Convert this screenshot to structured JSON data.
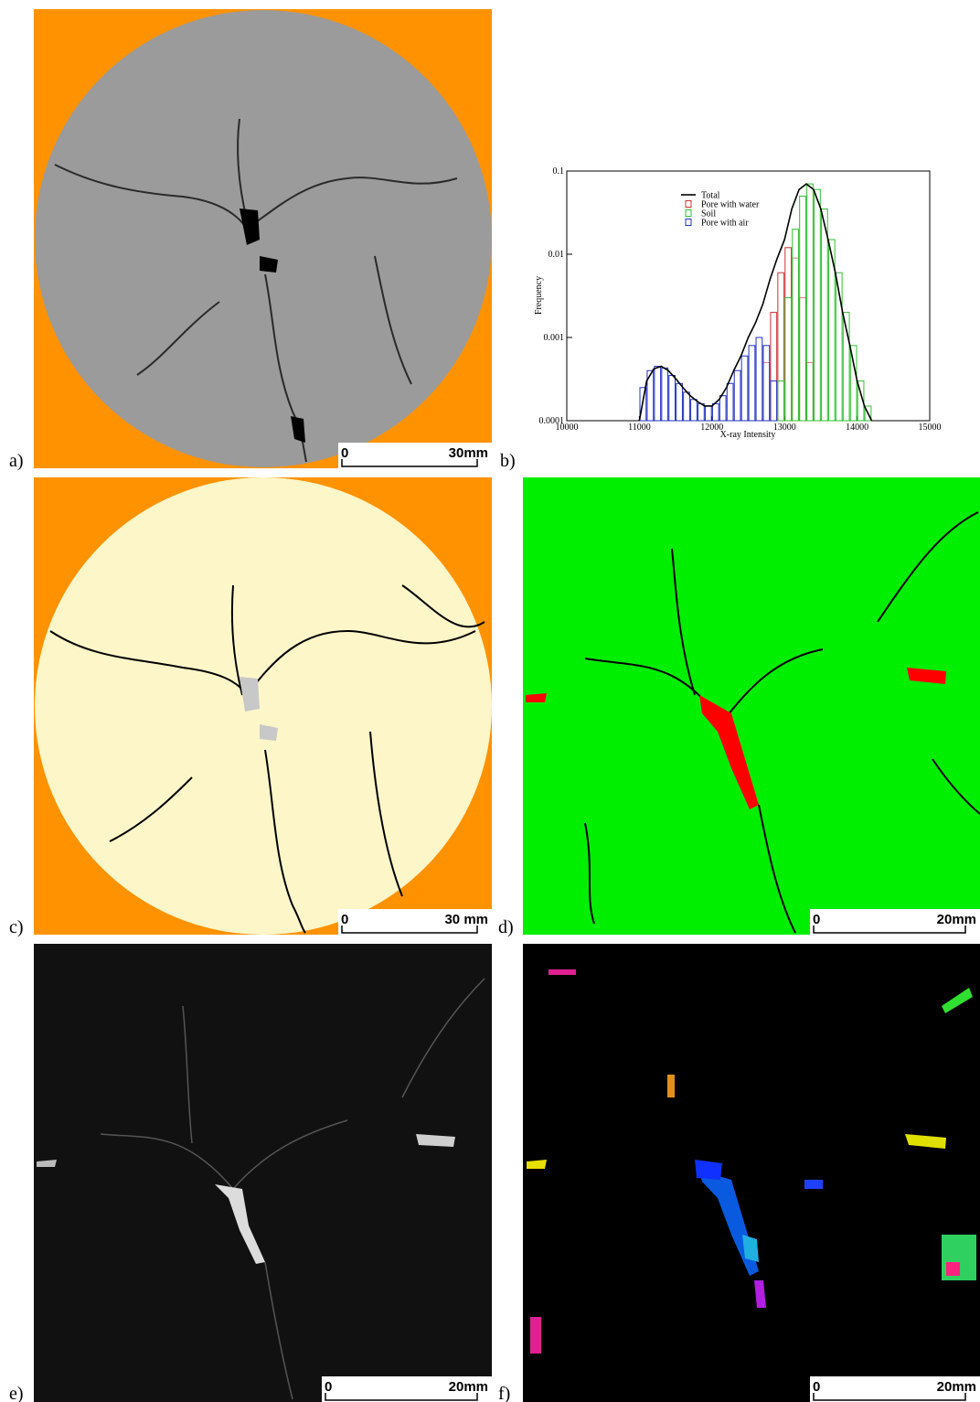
{
  "chart_data": {
    "type": "histogram",
    "x_label": "X-ray Intensity",
    "y_label": "Frequency",
    "xlim": [
      10000,
      15000
    ],
    "xticks": [
      10000,
      11000,
      12000,
      13000,
      14000,
      15000
    ],
    "ylim": [
      0.0001,
      0.1
    ],
    "yticks": [
      0.0001,
      0.001,
      0.01,
      0.1
    ],
    "log_y": true,
    "legend": "upper center",
    "bins": [
      11000,
      11100,
      11200,
      11300,
      11400,
      11500,
      11600,
      11700,
      11800,
      11900,
      12000,
      12100,
      12200,
      12300,
      12400,
      12500,
      12600,
      12700,
      12800,
      12900,
      13000,
      13100,
      13200,
      13300,
      13400,
      13500,
      13600,
      13700,
      13800,
      13900,
      14000,
      14100,
      14200
    ],
    "series": [
      {
        "name": "Total",
        "type": "line",
        "color": "#000000",
        "x": [
          11000,
          11100,
          11200,
          11300,
          11400,
          11500,
          11600,
          11700,
          11800,
          11900,
          12000,
          12100,
          12200,
          12300,
          12400,
          12500,
          12600,
          12700,
          12800,
          12900,
          13000,
          13100,
          13200,
          13300,
          13400,
          13500,
          13600,
          13700,
          13800,
          13900,
          14000,
          14100,
          14200
        ],
        "values": [
          0.0001,
          0.0003,
          0.00042,
          0.00045,
          0.0004,
          0.00032,
          0.00025,
          0.0002,
          0.00017,
          0.00015,
          0.00015,
          0.00018,
          0.00025,
          0.0004,
          0.0006,
          0.001,
          0.0015,
          0.0025,
          0.005,
          0.009,
          0.015,
          0.035,
          0.06,
          0.07,
          0.06,
          0.035,
          0.015,
          0.006,
          0.002,
          0.0008,
          0.0003,
          0.00015,
          0.0001
        ]
      },
      {
        "name": "Pore with water",
        "color": "#d03030",
        "values": [
          null,
          null,
          null,
          null,
          null,
          null,
          null,
          null,
          null,
          null,
          null,
          null,
          null,
          null,
          null,
          null,
          null,
          0.0005,
          0.002,
          0.006,
          0.012,
          0.009,
          0.003,
          0.0005,
          null,
          null,
          null,
          null,
          null,
          null,
          null,
          null
        ]
      },
      {
        "name": "Soil",
        "color": "#30c030",
        "values": [
          null,
          null,
          null,
          null,
          null,
          null,
          null,
          null,
          null,
          null,
          null,
          null,
          null,
          null,
          null,
          null,
          null,
          null,
          null,
          0.0003,
          0.003,
          0.02,
          0.05,
          0.07,
          0.06,
          0.035,
          0.015,
          0.006,
          0.002,
          0.0008,
          0.0003,
          0.00015
        ]
      },
      {
        "name": "Pore with air",
        "color": "#2030c0",
        "values": [
          0.00025,
          0.0004,
          0.00045,
          0.00043,
          0.00035,
          0.00028,
          0.00022,
          0.00018,
          0.00016,
          0.00015,
          0.00016,
          0.0002,
          0.00028,
          0.0004,
          0.0006,
          0.0008,
          0.001,
          0.0008,
          0.0003,
          null,
          null,
          null,
          null,
          null,
          null,
          null,
          null,
          null,
          null,
          null,
          null,
          null
        ]
      }
    ]
  },
  "panels": [
    {
      "label": "a)",
      "scale_bar": {
        "start": "0",
        "end": "30mm"
      }
    },
    {
      "label": "b)"
    },
    {
      "label": "c)",
      "scale_bar": {
        "start": "0",
        "end": "30 mm"
      }
    },
    {
      "label": "d)",
      "scale_bar": {
        "start": "0",
        "end": "20mm"
      }
    },
    {
      "label": "e)",
      "scale_bar": {
        "start": "0",
        "end": "20mm"
      }
    },
    {
      "label": "f)",
      "scale_bar": {
        "start": "0",
        "end": "20mm"
      }
    }
  ]
}
